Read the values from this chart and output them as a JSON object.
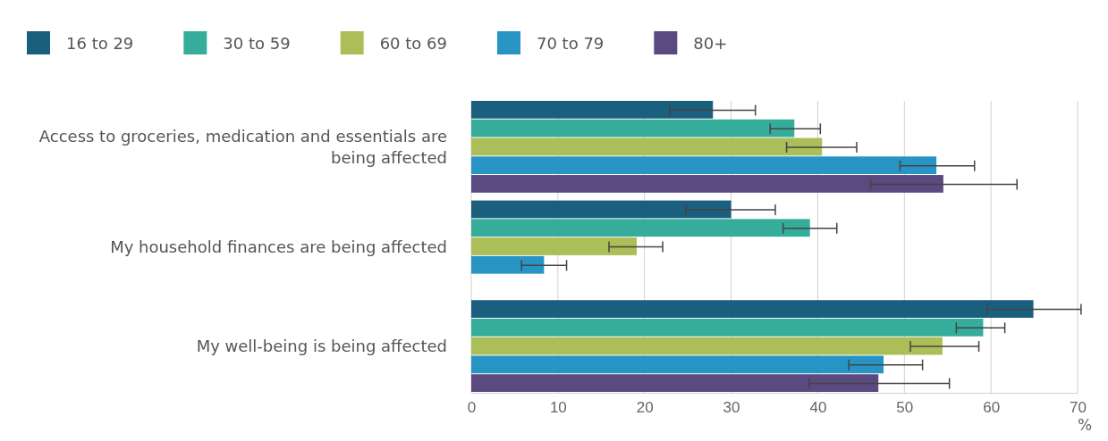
{
  "chart_data": {
    "type": "bar",
    "orientation": "horizontal",
    "categories": [
      "Access to groceries, medication and essentials are being affected",
      "My household finances are being affected",
      "My well-being is being affected"
    ],
    "series": [
      {
        "name": "16 to 29",
        "color": "#1b5f7f",
        "values": [
          27.9,
          30.0,
          64.9
        ],
        "errors": [
          [
            22.9,
            32.8
          ],
          [
            24.8,
            35.1
          ],
          [
            59.6,
            70.4
          ]
        ]
      },
      {
        "name": "30 to 59",
        "color": "#35ad9a",
        "values": [
          37.3,
          39.1,
          59.1
        ],
        "errors": [
          [
            34.5,
            40.3
          ],
          [
            36.0,
            42.2
          ],
          [
            56.0,
            61.6
          ]
        ]
      },
      {
        "name": "60 to 69",
        "color": "#acbe57",
        "values": [
          40.5,
          19.1,
          54.4
        ],
        "errors": [
          [
            36.4,
            44.5
          ],
          [
            15.9,
            22.1
          ],
          [
            50.7,
            58.6
          ]
        ]
      },
      {
        "name": "70 to 79",
        "color": "#2894c4",
        "values": [
          53.7,
          8.4,
          47.6
        ],
        "errors": [
          [
            49.5,
            58.1
          ],
          [
            5.8,
            11.0
          ],
          [
            43.6,
            52.1
          ]
        ]
      },
      {
        "name": "80+",
        "color": "#5a4a80",
        "values": [
          54.5,
          null,
          47.0
        ],
        "errors": [
          [
            46.1,
            63.0
          ],
          null,
          [
            39.0,
            55.2
          ]
        ]
      }
    ],
    "xlim": [
      0,
      70
    ],
    "xticks": [
      0,
      10,
      20,
      30,
      40,
      50,
      60,
      70
    ],
    "xlabel": "%",
    "grid": "x",
    "legend": "top left"
  }
}
